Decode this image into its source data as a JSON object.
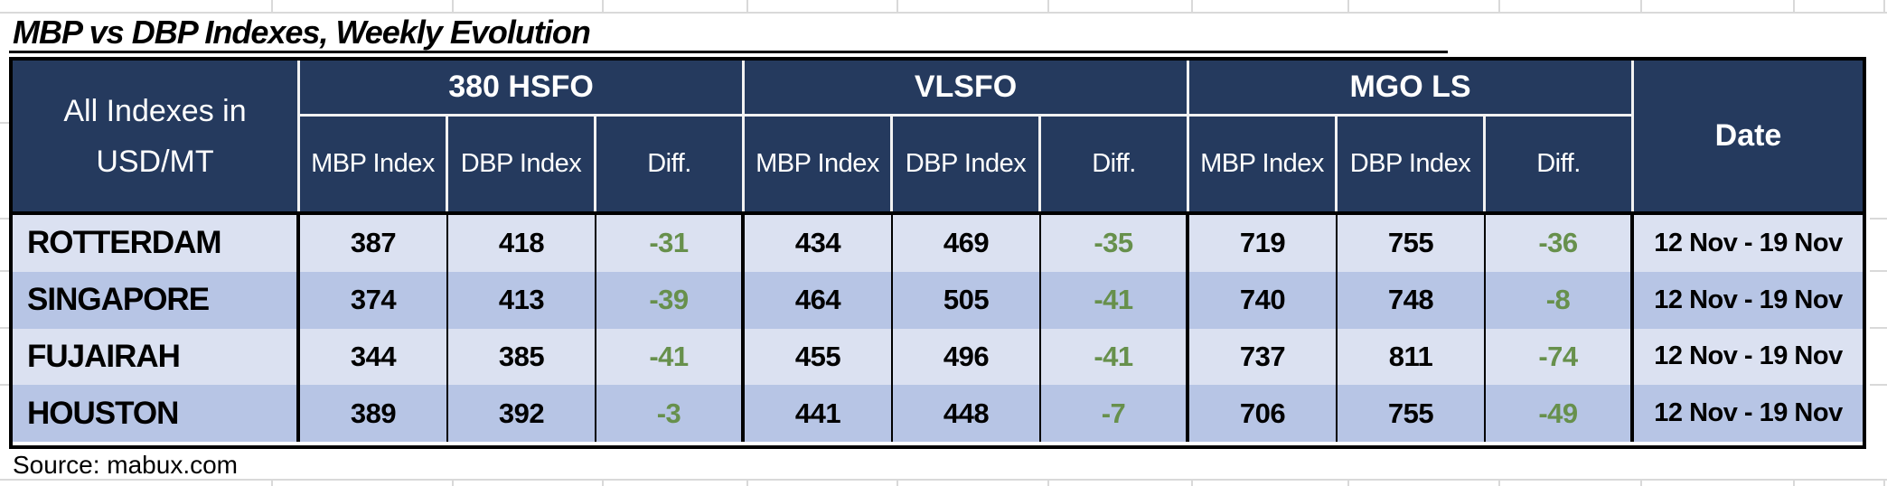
{
  "title": "MBP vs DBP Indexes, Weekly Evolution",
  "source": "Source: mabux.com",
  "colors": {
    "header_bg": "#253a5e",
    "header_text": "#ffffff",
    "row_light": "#dbe1f1",
    "row_dark": "#b7c5e5",
    "diff_green": "#67904c",
    "border": "#000000",
    "gridline": "#d9d9d9"
  },
  "table": {
    "corner_header": {
      "line1": "All Indexes in",
      "line2": "USD/MT"
    },
    "groups": [
      {
        "label": "380 HSFO"
      },
      {
        "label": "VLSFO"
      },
      {
        "label": "MGO LS"
      }
    ],
    "sub_headers": [
      "MBP Index",
      "DBP Index",
      "Diff."
    ],
    "date_header": "Date",
    "rows": [
      {
        "port": "ROTTERDAM",
        "values": [
          "387",
          "418",
          "-31",
          "434",
          "469",
          "-35",
          "719",
          "755",
          "-36"
        ],
        "date": "12 Nov - 19 Nov"
      },
      {
        "port": "SINGAPORE",
        "values": [
          "374",
          "413",
          "-39",
          "464",
          "505",
          "-41",
          "740",
          "748",
          "-8"
        ],
        "date": "12 Nov - 19 Nov"
      },
      {
        "port": "FUJAIRAH",
        "values": [
          "344",
          "385",
          "-41",
          "455",
          "496",
          "-41",
          "737",
          "811",
          "-74"
        ],
        "date": "12 Nov - 19 Nov"
      },
      {
        "port": "HOUSTON",
        "values": [
          "389",
          "392",
          "-3",
          "441",
          "448",
          "-7",
          "706",
          "755",
          "-49"
        ],
        "date": "12 Nov - 19 Nov"
      }
    ]
  }
}
